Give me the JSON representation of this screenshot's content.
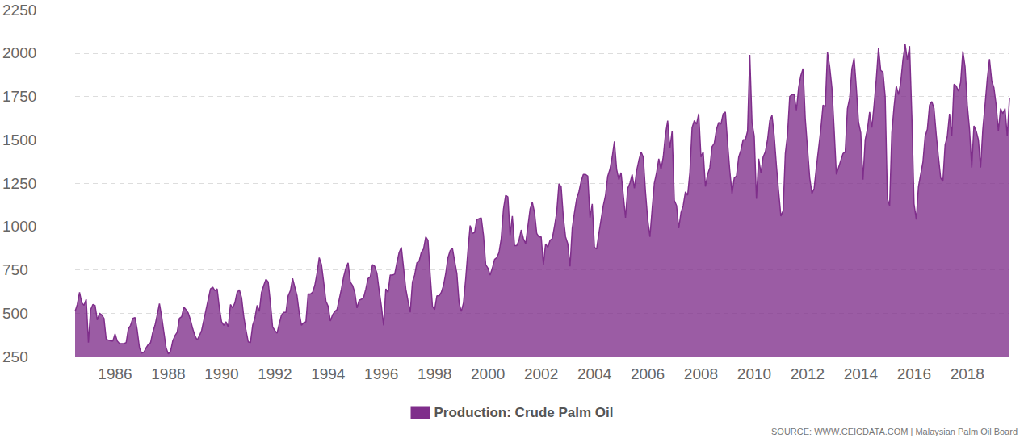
{
  "chart_data": {
    "type": "area",
    "categories": [
      null,
      null,
      null,
      null,
      null,
      null,
      null,
      null,
      null,
      null,
      null,
      null,
      null,
      null,
      null,
      null,
      null,
      null,
      "1986",
      null,
      null,
      null,
      null,
      null,
      null,
      null,
      null,
      null,
      null,
      null,
      null,
      null,
      null,
      null,
      null,
      null,
      null,
      null,
      null,
      null,
      null,
      null,
      "1988",
      null,
      null,
      null,
      null,
      null,
      null,
      null,
      null,
      null,
      null,
      null,
      null,
      null,
      null,
      null,
      null,
      null,
      null,
      null,
      null,
      null,
      null,
      null,
      "1990",
      null,
      null,
      null,
      null,
      null,
      null,
      null,
      null,
      null,
      null,
      null,
      null,
      null,
      null,
      null,
      null,
      null,
      null,
      null,
      null,
      null,
      null,
      null,
      "1992",
      null,
      null,
      null,
      null,
      null,
      null,
      null,
      null,
      null,
      null,
      null,
      null,
      null,
      null,
      null,
      null,
      null,
      null,
      null,
      null,
      null,
      null,
      null,
      "1994",
      null,
      null,
      null,
      null,
      null,
      null,
      null,
      null,
      null,
      null,
      null,
      null,
      null,
      null,
      null,
      null,
      null,
      null,
      null,
      null,
      null,
      null,
      null,
      "1996",
      null,
      null,
      null,
      null,
      null,
      null,
      null,
      null,
      null,
      null,
      null,
      null,
      null,
      null,
      null,
      null,
      null,
      null,
      null,
      null,
      null,
      null,
      null,
      "1998",
      null,
      null,
      null,
      null,
      null,
      null,
      null,
      null,
      null,
      null,
      null,
      null,
      null,
      null,
      null,
      null,
      null,
      null,
      null,
      null,
      null,
      null,
      null,
      "2000",
      null,
      null,
      null,
      null,
      null,
      null,
      null,
      null,
      null,
      null,
      null,
      null,
      null,
      null,
      null,
      null,
      null,
      null,
      null,
      null,
      null,
      null,
      null,
      "2002",
      null,
      null,
      null,
      null,
      null,
      null,
      null,
      null,
      null,
      null,
      null,
      null,
      null,
      null,
      null,
      null,
      null,
      null,
      null,
      null,
      null,
      null,
      null,
      "2004",
      null,
      null,
      null,
      null,
      null,
      null,
      null,
      null,
      null,
      null,
      null,
      null,
      null,
      null,
      null,
      null,
      null,
      null,
      null,
      null,
      null,
      null,
      null,
      "2006",
      null,
      null,
      null,
      null,
      null,
      null,
      null,
      null,
      null,
      null,
      null,
      null,
      null,
      null,
      null,
      null,
      null,
      null,
      null,
      null,
      null,
      null,
      null,
      "2008",
      null,
      null,
      null,
      null,
      null,
      null,
      null,
      null,
      null,
      null,
      null,
      null,
      null,
      null,
      null,
      null,
      null,
      null,
      null,
      null,
      null,
      null,
      null,
      "2010",
      null,
      null,
      null,
      null,
      null,
      null,
      null,
      null,
      null,
      null,
      null,
      null,
      null,
      null,
      null,
      null,
      null,
      null,
      null,
      null,
      null,
      null,
      null,
      "2012",
      null,
      null,
      null,
      null,
      null,
      null,
      null,
      null,
      null,
      null,
      null,
      null,
      null,
      null,
      null,
      null,
      null,
      null,
      null,
      null,
      null,
      null,
      null,
      "2014",
      null,
      null,
      null,
      null,
      null,
      null,
      null,
      null,
      null,
      null,
      null,
      null,
      null,
      null,
      null,
      null,
      null,
      null,
      null,
      null,
      null,
      null,
      null,
      "2016",
      null,
      null,
      null,
      null,
      null,
      null,
      null,
      null,
      null,
      null,
      null,
      null,
      null,
      null,
      null,
      null,
      null,
      null,
      null,
      null,
      null,
      null,
      null,
      "2018",
      null,
      null,
      null,
      null,
      null,
      null,
      null,
      null,
      null,
      null,
      null,
      null,
      null,
      null,
      null,
      null,
      null,
      null,
      null
    ],
    "series": [
      {
        "name": "Production: Crude Palm Oil",
        "color": "#7f2e8b",
        "values": [
          510,
          550,
          620,
          560,
          545,
          580,
          330,
          520,
          550,
          545,
          460,
          500,
          490,
          470,
          350,
          345,
          340,
          340,
          380,
          340,
          325,
          325,
          325,
          330,
          410,
          430,
          470,
          475,
          400,
          300,
          270,
          275,
          300,
          320,
          330,
          390,
          430,
          490,
          555,
          480,
          390,
          300,
          265,
          280,
          340,
          370,
          390,
          470,
          480,
          535,
          520,
          500,
          460,
          410,
          370,
          345,
          370,
          400,
          460,
          520,
          580,
          640,
          650,
          630,
          640,
          530,
          450,
          430,
          450,
          420,
          550,
          530,
          560,
          620,
          635,
          590,
          480,
          400,
          335,
          330,
          430,
          470,
          545,
          510,
          620,
          660,
          695,
          680,
          560,
          420,
          400,
          385,
          440,
          490,
          505,
          505,
          600,
          630,
          700,
          650,
          600,
          500,
          430,
          445,
          450,
          610,
          610,
          620,
          660,
          730,
          820,
          780,
          680,
          570,
          540,
          455,
          490,
          510,
          520,
          580,
          640,
          710,
          760,
          790,
          680,
          660,
          620,
          530,
          575,
          580,
          590,
          640,
          700,
          710,
          780,
          770,
          730,
          630,
          540,
          430,
          640,
          620,
          720,
          720,
          725,
          790,
          850,
          880,
          760,
          640,
          570,
          505,
          680,
          720,
          790,
          800,
          850,
          870,
          940,
          920,
          720,
          540,
          520,
          600,
          600,
          620,
          660,
          730,
          820,
          860,
          875,
          800,
          730,
          560,
          510,
          560,
          700,
          860,
          1005,
          960,
          965,
          1040,
          1045,
          1050,
          950,
          780,
          760,
          720,
          760,
          810,
          820,
          850,
          930,
          1100,
          1180,
          1170,
          950,
          1060,
          890,
          890,
          920,
          980,
          930,
          900,
          1000,
          1100,
          1140,
          1080,
          960,
          940,
          940,
          780,
          900,
          880,
          920,
          930,
          1000,
          1080,
          1245,
          1230,
          1050,
          940,
          900,
          770,
          990,
          1080,
          1160,
          1200,
          1260,
          1300,
          1300,
          1290,
          1050,
          1130,
          880,
          870,
          960,
          1040,
          1120,
          1180,
          1290,
          1330,
          1400,
          1490,
          1330,
          1270,
          1310,
          1180,
          1050,
          1220,
          1250,
          1300,
          1220,
          1320,
          1380,
          1430,
          1400,
          1200,
          1040,
          940,
          1100,
          1250,
          1310,
          1390,
          1330,
          1400,
          1530,
          1610,
          1450,
          1550,
          1150,
          1120,
          990,
          1080,
          1120,
          1200,
          1180,
          1310,
          1570,
          1610,
          1590,
          1650,
          1400,
          1430,
          1230,
          1300,
          1340,
          1460,
          1480,
          1560,
          1600,
          1590,
          1650,
          1660,
          1480,
          1320,
          1190,
          1280,
          1290,
          1400,
          1440,
          1500,
          1500,
          1550,
          1990,
          1600,
          1520,
          1160,
          1390,
          1310,
          1400,
          1430,
          1500,
          1610,
          1640,
          1520,
          1350,
          1200,
          1060,
          1090,
          1420,
          1530,
          1750,
          1760,
          1760,
          1670,
          1800,
          1870,
          1910,
          1620,
          1450,
          1280,
          1190,
          1220,
          1340,
          1450,
          1560,
          1700,
          1690,
          2005,
          1920,
          1800,
          1560,
          1300,
          1340,
          1380,
          1420,
          1430,
          1680,
          1740,
          1910,
          1970,
          1800,
          1600,
          1540,
          1270,
          1500,
          1560,
          1660,
          1570,
          1700,
          1850,
          2030,
          1900,
          1890,
          1750,
          1160,
          1120,
          1540,
          1690,
          1810,
          1760,
          1830,
          1960,
          2050,
          1960,
          2040,
          1640,
          1130,
          1040,
          1230,
          1300,
          1370,
          1520,
          1560,
          1700,
          1720,
          1680,
          1530,
          1400,
          1280,
          1260,
          1470,
          1520,
          1650,
          1520,
          1820,
          1810,
          1780,
          1830,
          2010,
          1920,
          1700,
          1560,
          1340,
          1580,
          1550,
          1500,
          1340,
          1560,
          1700,
          1850,
          1965,
          1840,
          1800,
          1700,
          1550,
          1680,
          1650,
          1680,
          1520,
          1740
        ]
      }
    ],
    "ylim": [
      250,
      2250
    ],
    "yticks": [
      250,
      500,
      750,
      1000,
      1250,
      1500,
      1750,
      2000,
      2250
    ],
    "grid": true,
    "legend": "bottom",
    "source": "SOURCE: WWW.CEICDATA.COM | Malaysian Palm Oil Board"
  }
}
